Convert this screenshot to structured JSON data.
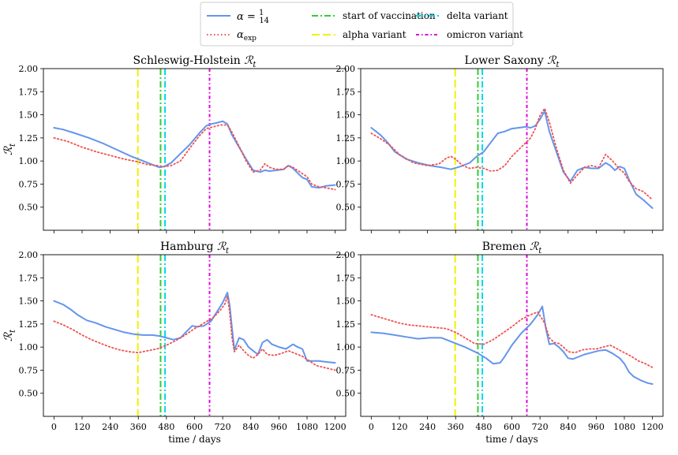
{
  "legend": {
    "entries": [
      {
        "key": "alpha14",
        "label": "α = 1/14",
        "color": "#6495ED",
        "style": "solid"
      },
      {
        "key": "alphaexp",
        "label": "α_exp",
        "color": "#F05050",
        "style": "dotted"
      },
      {
        "key": "vacc",
        "label": "start of vaccination",
        "color": "#32CD32",
        "style": "dashdot"
      },
      {
        "key": "alpha_var",
        "label": "alpha variant",
        "color": "#F0F000",
        "style": "dashed"
      },
      {
        "key": "delta_var",
        "label": "delta variant",
        "color": "#00D8E8",
        "style": "dashdot"
      },
      {
        "key": "omicron_var",
        "label": "omicron variant",
        "color": "#E000E0",
        "style": "dashdot"
      }
    ]
  },
  "chart_data": [
    {
      "type": "line",
      "title": "Schleswig-Holstein",
      "ylabel": "R_t",
      "xlabel": "",
      "xlim": [
        -45,
        1245
      ],
      "ylim": [
        0.25,
        2.0
      ],
      "xticks": [
        0,
        120,
        240,
        360,
        480,
        600,
        720,
        840,
        960,
        1080,
        1200
      ],
      "yticks": [
        0.5,
        0.75,
        1.0,
        1.25,
        1.5,
        1.75,
        2.0
      ],
      "show_xticklabels": false,
      "vlines": {
        "alpha_var": 358,
        "vacc": 455,
        "delta_var": 474,
        "omicron_var": 664
      },
      "series": [
        {
          "name": "alpha14",
          "x": [
            0,
            40,
            90,
            150,
            210,
            270,
            330,
            380,
            420,
            450,
            470,
            500,
            540,
            580,
            620,
            650,
            670,
            690,
            720,
            740,
            760,
            790,
            820,
            850,
            880,
            900,
            920,
            950,
            980,
            1000,
            1020,
            1040,
            1060,
            1080,
            1100,
            1130,
            1160,
            1200
          ],
          "y": [
            1.36,
            1.34,
            1.3,
            1.25,
            1.19,
            1.12,
            1.05,
            1.0,
            0.96,
            0.93,
            0.94,
            0.98,
            1.08,
            1.18,
            1.3,
            1.38,
            1.4,
            1.41,
            1.43,
            1.4,
            1.28,
            1.15,
            1.02,
            0.9,
            0.88,
            0.9,
            0.89,
            0.9,
            0.91,
            0.95,
            0.92,
            0.87,
            0.82,
            0.8,
            0.72,
            0.71,
            0.73,
            0.74
          ]
        },
        {
          "name": "alphaexp",
          "x": [
            0,
            60,
            120,
            180,
            240,
            300,
            360,
            400,
            440,
            470,
            500,
            540,
            580,
            620,
            650,
            680,
            710,
            740,
            760,
            790,
            820,
            850,
            880,
            900,
            920,
            950,
            980,
            1000,
            1020,
            1050,
            1080,
            1100,
            1130,
            1160,
            1200
          ],
          "y": [
            1.25,
            1.21,
            1.15,
            1.1,
            1.06,
            1.02,
            0.99,
            0.96,
            0.95,
            0.94,
            0.95,
            1.0,
            1.14,
            1.27,
            1.35,
            1.37,
            1.39,
            1.39,
            1.31,
            1.16,
            1.0,
            0.88,
            0.9,
            0.97,
            0.93,
            0.91,
            0.91,
            0.95,
            0.93,
            0.88,
            0.83,
            0.75,
            0.72,
            0.71,
            0.69
          ]
        }
      ]
    },
    {
      "type": "line",
      "title": "Lower Saxony",
      "ylabel": "",
      "xlabel": "",
      "xlim": [
        -45,
        1245
      ],
      "ylim": [
        0.25,
        2.0
      ],
      "xticks": [
        0,
        120,
        240,
        360,
        480,
        600,
        720,
        840,
        960,
        1080,
        1200
      ],
      "yticks": [
        0.5,
        0.75,
        1.0,
        1.25,
        1.5,
        1.75,
        2.0
      ],
      "show_xticklabels": false,
      "vlines": {
        "alpha_var": 358,
        "vacc": 455,
        "delta_var": 474,
        "omicron_var": 664
      },
      "series": [
        {
          "name": "alpha14",
          "x": [
            0,
            40,
            70,
            100,
            150,
            200,
            250,
            300,
            340,
            380,
            420,
            450,
            480,
            510,
            540,
            570,
            600,
            630,
            660,
            680,
            700,
            720,
            740,
            760,
            790,
            820,
            850,
            880,
            910,
            940,
            970,
            1000,
            1020,
            1040,
            1060,
            1080,
            1100,
            1130,
            1160,
            1200
          ],
          "y": [
            1.36,
            1.28,
            1.2,
            1.1,
            1.02,
            0.98,
            0.95,
            0.93,
            0.91,
            0.94,
            0.98,
            1.05,
            1.1,
            1.2,
            1.3,
            1.32,
            1.35,
            1.36,
            1.37,
            1.36,
            1.38,
            1.45,
            1.54,
            1.32,
            1.1,
            0.88,
            0.78,
            0.9,
            0.93,
            0.92,
            0.92,
            0.98,
            0.95,
            0.9,
            0.94,
            0.92,
            0.8,
            0.64,
            0.58,
            0.49
          ]
        },
        {
          "name": "alphaexp",
          "x": [
            0,
            40,
            80,
            120,
            180,
            240,
            290,
            320,
            340,
            360,
            390,
            420,
            450,
            480,
            510,
            540,
            570,
            600,
            640,
            680,
            700,
            720,
            740,
            760,
            790,
            820,
            850,
            880,
            910,
            940,
            970,
            1000,
            1030,
            1060,
            1080,
            1100,
            1130,
            1160,
            1200
          ],
          "y": [
            1.3,
            1.24,
            1.17,
            1.07,
            0.98,
            0.95,
            0.97,
            1.03,
            1.05,
            1.02,
            0.95,
            0.92,
            0.93,
            0.92,
            0.89,
            0.9,
            0.95,
            1.05,
            1.15,
            1.25,
            1.35,
            1.49,
            1.57,
            1.42,
            1.14,
            0.9,
            0.76,
            0.85,
            0.93,
            0.95,
            0.93,
            1.07,
            1.0,
            0.91,
            0.87,
            0.78,
            0.7,
            0.67,
            0.58
          ]
        }
      ]
    },
    {
      "type": "line",
      "title": "Hamburg",
      "ylabel": "R_t",
      "xlabel": "time / days",
      "xlim": [
        -45,
        1245
      ],
      "ylim": [
        0.25,
        2.0
      ],
      "xticks": [
        0,
        120,
        240,
        360,
        480,
        600,
        720,
        840,
        960,
        1080,
        1200
      ],
      "yticks": [
        0.5,
        0.75,
        1.0,
        1.25,
        1.5,
        1.75,
        2.0
      ],
      "show_xticklabels": true,
      "vlines": {
        "alpha_var": 358,
        "vacc": 455,
        "delta_var": 474,
        "omicron_var": 664
      },
      "series": [
        {
          "name": "alpha14",
          "x": [
            0,
            40,
            70,
            100,
            140,
            180,
            220,
            260,
            300,
            340,
            380,
            420,
            450,
            480,
            510,
            540,
            570,
            590,
            610,
            640,
            670,
            700,
            720,
            740,
            750,
            760,
            770,
            790,
            810,
            830,
            850,
            870,
            890,
            910,
            930,
            960,
            990,
            1020,
            1040,
            1060,
            1080,
            1100,
            1130,
            1160,
            1200
          ],
          "y": [
            1.5,
            1.46,
            1.41,
            1.35,
            1.29,
            1.26,
            1.22,
            1.19,
            1.16,
            1.14,
            1.13,
            1.13,
            1.12,
            1.1,
            1.08,
            1.1,
            1.18,
            1.23,
            1.22,
            1.23,
            1.28,
            1.4,
            1.48,
            1.59,
            1.45,
            1.2,
            0.97,
            1.1,
            1.08,
            1.0,
            0.96,
            0.92,
            1.05,
            1.08,
            1.03,
            1.0,
            0.98,
            1.03,
            1.0,
            0.98,
            0.85,
            0.85,
            0.85,
            0.84,
            0.83
          ]
        },
        {
          "name": "alphaexp",
          "x": [
            0,
            40,
            80,
            120,
            160,
            200,
            240,
            280,
            320,
            360,
            400,
            440,
            480,
            520,
            560,
            600,
            640,
            680,
            710,
            730,
            740,
            750,
            760,
            770,
            790,
            810,
            830,
            850,
            870,
            890,
            910,
            940,
            970,
            1000,
            1030,
            1060,
            1090,
            1120,
            1150,
            1200
          ],
          "y": [
            1.28,
            1.24,
            1.19,
            1.13,
            1.08,
            1.04,
            1.0,
            0.97,
            0.95,
            0.94,
            0.96,
            0.98,
            1.02,
            1.07,
            1.13,
            1.2,
            1.26,
            1.32,
            1.4,
            1.47,
            1.55,
            1.38,
            1.1,
            0.95,
            1.02,
            0.96,
            0.91,
            0.88,
            0.92,
            0.98,
            0.92,
            0.91,
            0.93,
            0.96,
            0.93,
            0.9,
            0.85,
            0.8,
            0.78,
            0.75
          ]
        }
      ]
    },
    {
      "type": "line",
      "title": "Bremen",
      "ylabel": "",
      "xlabel": "time / days",
      "xlim": [
        -45,
        1245
      ],
      "ylim": [
        0.25,
        2.0
      ],
      "xticks": [
        0,
        120,
        240,
        360,
        480,
        600,
        720,
        840,
        960,
        1080,
        1200
      ],
      "yticks": [
        0.5,
        0.75,
        1.0,
        1.25,
        1.5,
        1.75,
        2.0
      ],
      "show_xticklabels": true,
      "vlines": {
        "alpha_var": 358,
        "vacc": 455,
        "delta_var": 474,
        "omicron_var": 664
      },
      "series": [
        {
          "name": "alpha14",
          "x": [
            0,
            50,
            100,
            150,
            200,
            250,
            300,
            350,
            400,
            450,
            490,
            520,
            550,
            570,
            600,
            640,
            680,
            710,
            730,
            745,
            760,
            780,
            800,
            820,
            840,
            860,
            880,
            910,
            940,
            970,
            1000,
            1030,
            1060,
            1080,
            1100,
            1120,
            1150,
            1180,
            1200
          ],
          "y": [
            1.16,
            1.15,
            1.13,
            1.11,
            1.09,
            1.1,
            1.1,
            1.05,
            1.0,
            0.94,
            0.88,
            0.82,
            0.83,
            0.9,
            1.02,
            1.15,
            1.25,
            1.35,
            1.44,
            1.2,
            1.03,
            1.04,
            1.0,
            0.95,
            0.88,
            0.87,
            0.89,
            0.92,
            0.94,
            0.96,
            0.97,
            0.93,
            0.88,
            0.82,
            0.73,
            0.68,
            0.64,
            0.61,
            0.6
          ]
        },
        {
          "name": "alphaexp",
          "x": [
            0,
            40,
            80,
            120,
            160,
            200,
            240,
            280,
            320,
            360,
            400,
            440,
            480,
            520,
            560,
            600,
            640,
            680,
            710,
            740,
            760,
            780,
            800,
            820,
            840,
            870,
            900,
            930,
            960,
            990,
            1020,
            1050,
            1080,
            1110,
            1140,
            1170,
            1200
          ],
          "y": [
            1.35,
            1.32,
            1.29,
            1.26,
            1.24,
            1.23,
            1.22,
            1.21,
            1.2,
            1.16,
            1.1,
            1.04,
            1.03,
            1.08,
            1.15,
            1.22,
            1.3,
            1.35,
            1.38,
            1.26,
            1.1,
            1.05,
            1.04,
            1.0,
            0.95,
            0.94,
            0.97,
            0.98,
            0.98,
            1.0,
            1.02,
            0.98,
            0.94,
            0.9,
            0.85,
            0.82,
            0.78
          ]
        }
      ]
    }
  ]
}
